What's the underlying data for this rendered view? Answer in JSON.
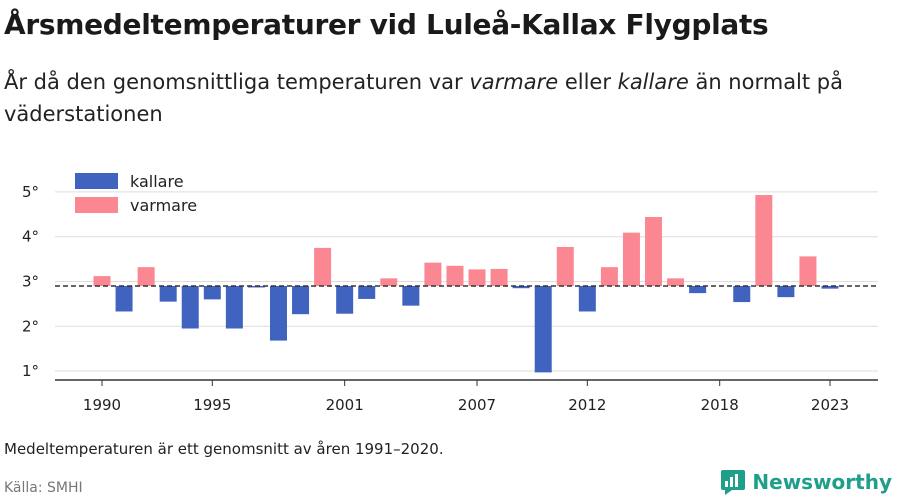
{
  "title": "Årsmedeltemperaturer vid Luleå-Kallax Flygplats",
  "subtitle": {
    "part1": "År då den genomsnittliga temperaturen var ",
    "warm_word": "varmare",
    "part2": " eller ",
    "cold_word": "kallare",
    "part3": " än normalt på väderstationen"
  },
  "note": "Medeltemperaturen är ett genomsnitt av åren 1991–2020.",
  "source": "Källa: SMHI",
  "brand": "Newsworthy",
  "colors": {
    "kallare": "#3f63bf",
    "varmare": "#fb8793",
    "grid": "#dddddd",
    "axis": "#333333",
    "brand": "#1f9e8a"
  },
  "chart_data": {
    "type": "bar",
    "baseline": 2.9,
    "baseline_style": "dashed",
    "ylim": [
      0.8,
      5.4
    ],
    "yticks": [
      1,
      2,
      3,
      4,
      5
    ],
    "ytick_labels": [
      "1°",
      "2°",
      "3°",
      "4°",
      "5°"
    ],
    "xticks": [
      1990,
      1995,
      2001,
      2007,
      2012,
      2018,
      2023
    ],
    "xtick_labels": [
      "1990",
      "1995",
      "2001",
      "2007",
      "2012",
      "2018",
      "2023"
    ],
    "legend": [
      {
        "key": "kallare",
        "label": "kallare"
      },
      {
        "key": "varmare",
        "label": "varmare"
      }
    ],
    "legend_position": "top-left",
    "grid": true,
    "x": [
      1990,
      1991,
      1992,
      1993,
      1994,
      1995,
      1996,
      1997,
      1998,
      1999,
      2000,
      2001,
      2002,
      2003,
      2004,
      2005,
      2006,
      2007,
      2008,
      2009,
      2010,
      2011,
      2012,
      2013,
      2014,
      2015,
      2016,
      2017,
      2018,
      2019,
      2020,
      2021,
      2022,
      2023
    ],
    "values": [
      3.12,
      2.33,
      3.32,
      2.55,
      1.95,
      2.6,
      1.95,
      2.87,
      1.68,
      2.27,
      3.75,
      2.28,
      2.61,
      3.07,
      2.46,
      3.42,
      3.35,
      3.27,
      3.28,
      2.85,
      0.97,
      3.77,
      2.33,
      3.32,
      4.09,
      4.44,
      3.07,
      2.74,
      null,
      2.54,
      4.93,
      2.65,
      3.56,
      2.84
    ]
  }
}
